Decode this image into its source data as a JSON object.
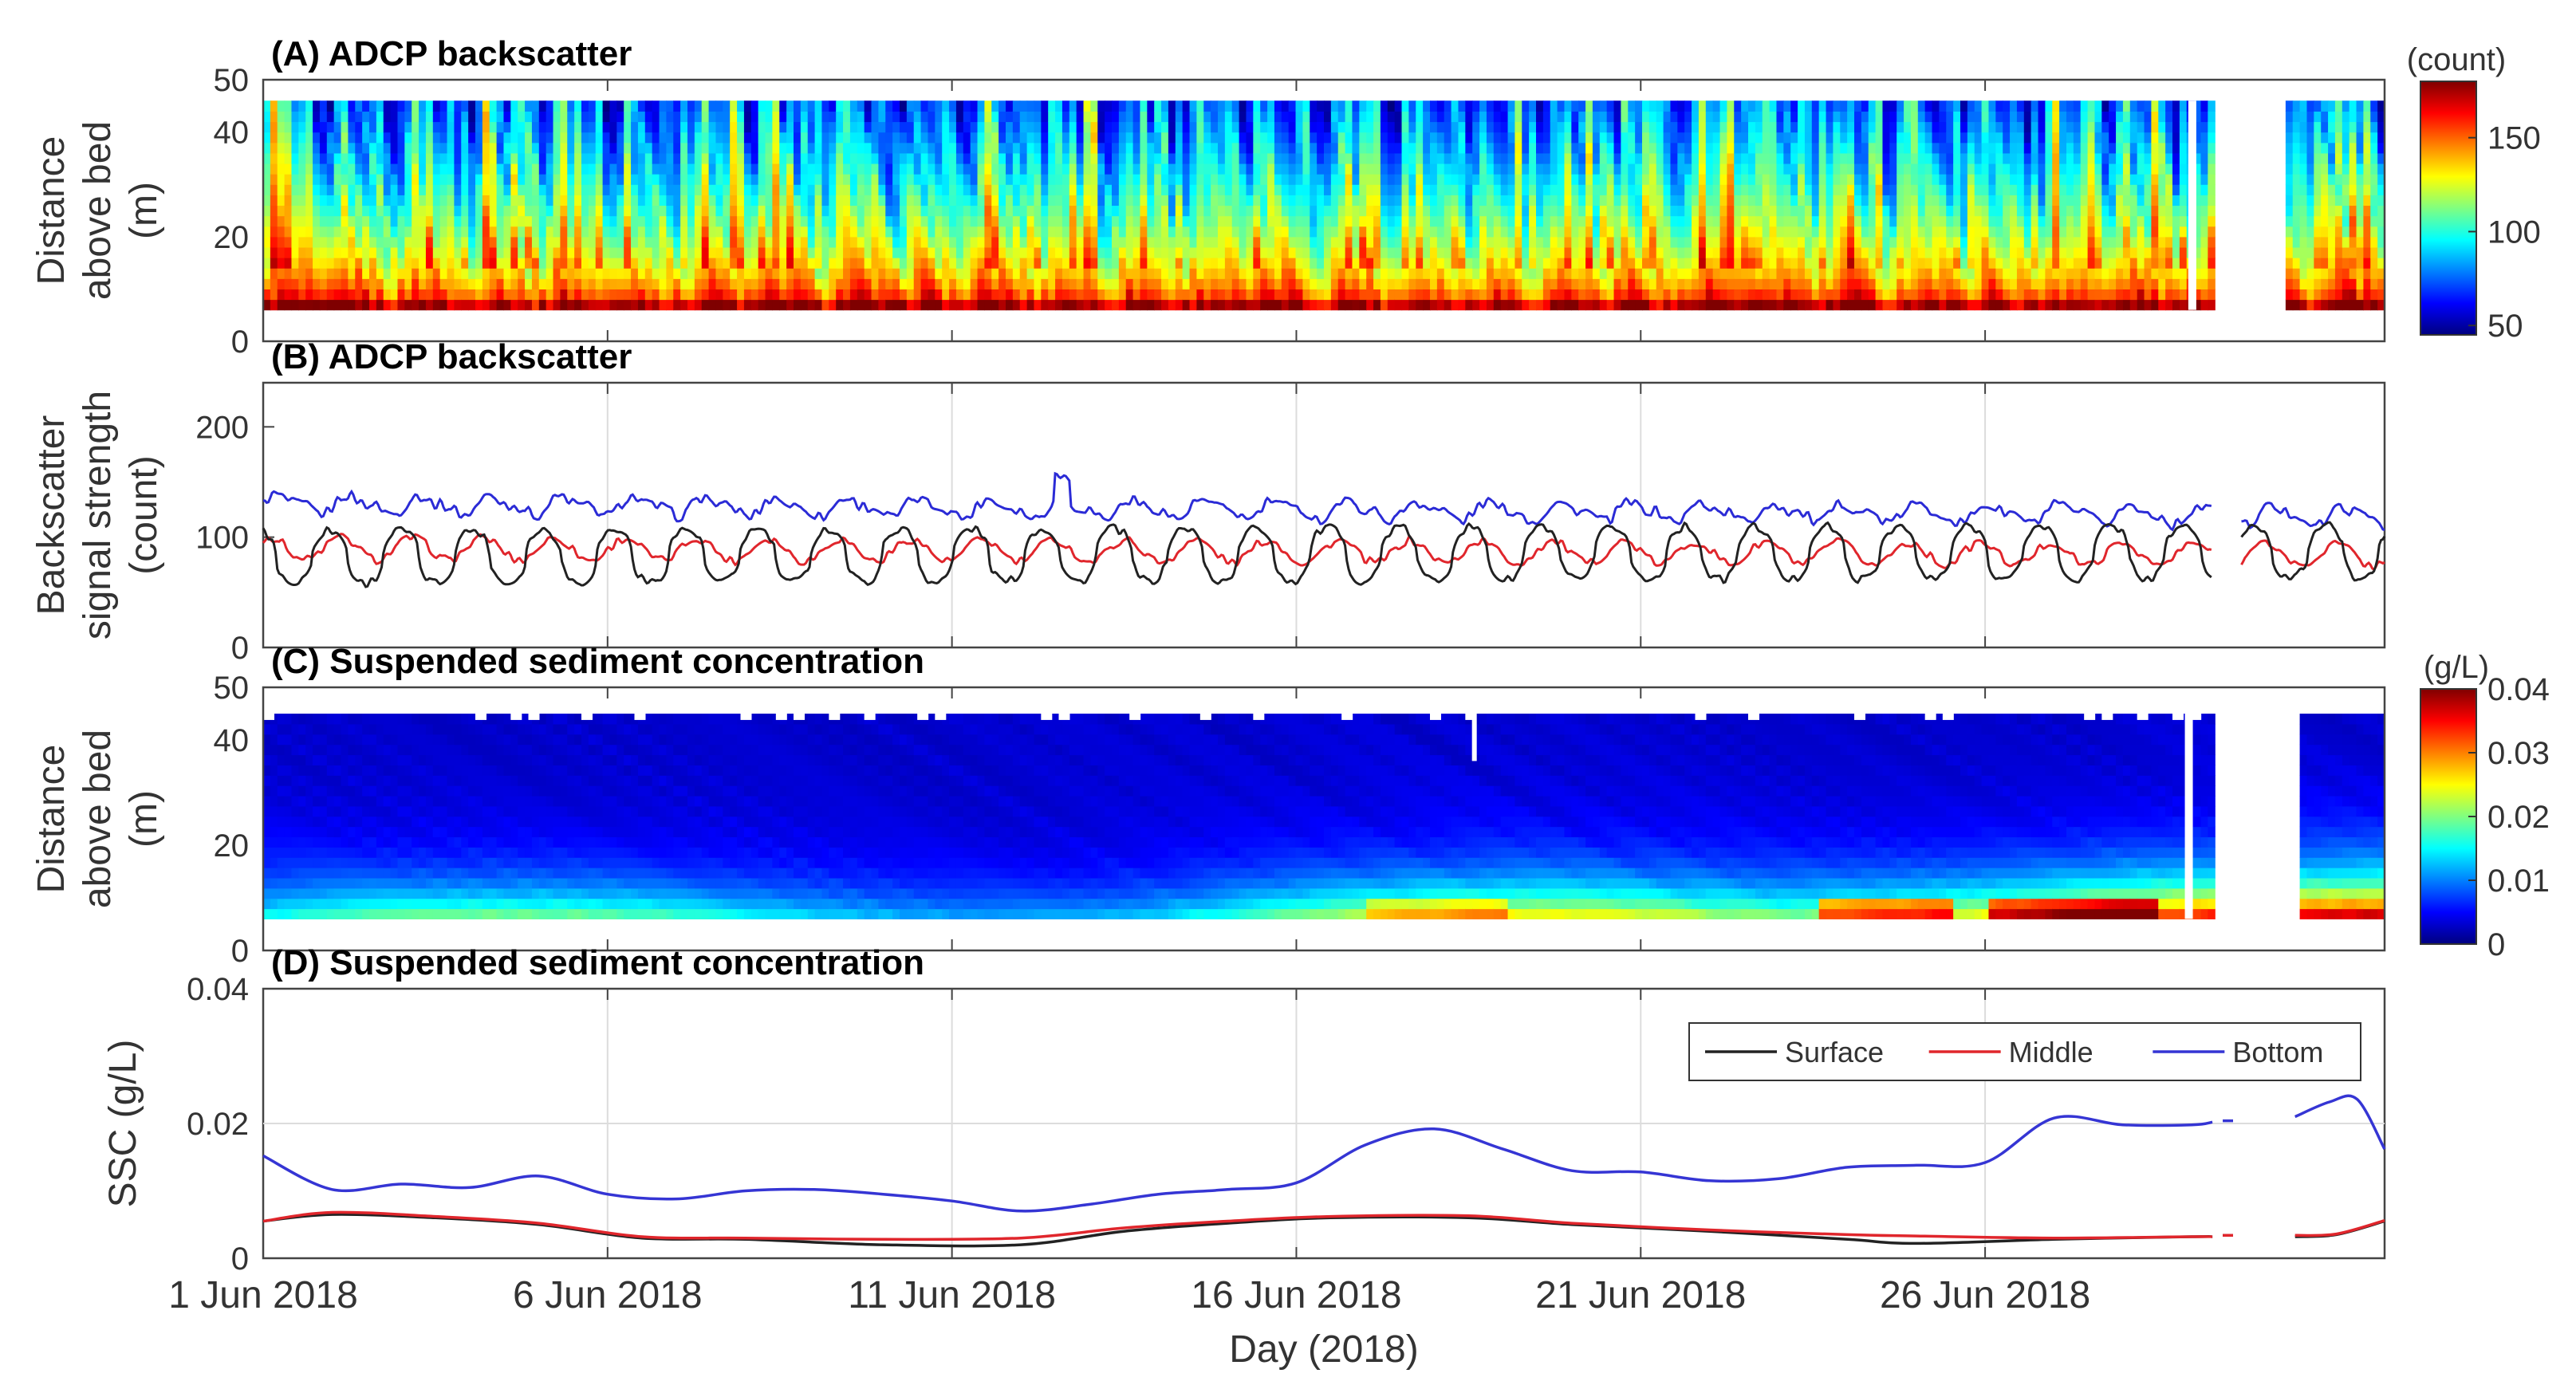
{
  "figure": {
    "xlabel": "Day (2018)",
    "x_range": [
      0,
      30.8
    ],
    "date_ticks": [
      {
        "day": 0,
        "label": "1 Jun 2018"
      },
      {
        "day": 5,
        "label": "6 Jun 2018"
      },
      {
        "day": 10,
        "label": "11 Jun 2018"
      },
      {
        "day": 15,
        "label": "16 Jun 2018"
      },
      {
        "day": 20,
        "label": "21 Jun 2018"
      },
      {
        "day": 25,
        "label": "26 Jun 2018"
      }
    ],
    "data_gap_days": [
      28.3,
      28.7,
      29.5
    ],
    "colormap": [
      "#00007f",
      "#0000ff",
      "#0080ff",
      "#00ffff",
      "#80ff80",
      "#ffff00",
      "#ff8000",
      "#ff0000",
      "#7f0000"
    ]
  },
  "chart_data": [
    {
      "id": "A",
      "type": "heatmap",
      "title": "(A) ADCP backscatter",
      "ylabel": [
        "Distance",
        "above bed",
        "(m)"
      ],
      "ylim": [
        0,
        50
      ],
      "yticks": [
        "0",
        "20",
        "40",
        "50"
      ],
      "ytick_values": [
        0,
        20,
        40,
        50
      ],
      "data_extent_m": [
        6,
        46
      ],
      "colorbar": {
        "label": "(count)",
        "range": [
          45,
          180
        ],
        "ticks": [
          "50",
          "100",
          "150"
        ],
        "tick_values": [
          50,
          100,
          150
        ]
      },
      "pattern": "tidal columns: high backscatter (150-180) near bed, low (50-80) aloft, with periodic high vertical plumes"
    },
    {
      "id": "B",
      "type": "line",
      "title": "(B) ADCP backscatter",
      "ylabel": [
        "Backscatter",
        "signal strength",
        "(count)"
      ],
      "ylim": [
        0,
        240
      ],
      "yticks": [
        "0",
        "100",
        "200"
      ],
      "ytick_values": [
        0,
        100,
        200
      ],
      "series": [
        {
          "name": "Bottom",
          "color": "#2b2bd6",
          "mean": 130,
          "tidal_amplitude": 7,
          "noise": 5,
          "trend_per_day": -0.35
        },
        {
          "name": "Middle",
          "color": "#e0262c",
          "mean": 90,
          "tidal_amplitude": 10,
          "noise": 4,
          "trend_per_day": -0.2
        },
        {
          "name": "Surface",
          "color": "#222222",
          "mean": 82,
          "tidal_amplitude": 24,
          "noise": 4,
          "trend_per_day": 0.15
        }
      ]
    },
    {
      "id": "C",
      "type": "heatmap",
      "title": "(C) Suspended sediment concentration",
      "ylabel": [
        "Distance",
        "above bed",
        "(m)"
      ],
      "ylim": [
        0,
        50
      ],
      "yticks": [
        "0",
        "20",
        "40",
        "50"
      ],
      "ytick_values": [
        0,
        20,
        40,
        50
      ],
      "data_extent_m": [
        6,
        45
      ],
      "colorbar": {
        "label": "(g/L)",
        "range": [
          0,
          0.04
        ],
        "ticks": [
          "0",
          "0.01",
          "0.02",
          "0.03",
          "0.04"
        ],
        "tick_values": [
          0,
          0.01,
          0.02,
          0.03,
          0.04
        ]
      },
      "pattern": "near-uniform low SSC (0.002-0.005) aloft; bed layer 0.01-0.02 rising to ~0.03 near days 23-27"
    },
    {
      "id": "D",
      "type": "line",
      "title": "(D) Suspended sediment concentration",
      "ylabel": [
        "SSC (g/L)"
      ],
      "ylim": [
        0,
        0.04
      ],
      "yticks": [
        "0",
        "0.02",
        "0.04"
      ],
      "ytick_values": [
        0,
        0.02,
        0.04
      ],
      "legend": {
        "position": "top-right",
        "entries": [
          "Surface",
          "Middle",
          "Bottom"
        ]
      },
      "series": [
        {
          "name": "Surface",
          "color": "#222222",
          "points": [
            [
              0,
              0.0055
            ],
            [
              1,
              0.0065
            ],
            [
              2.5,
              0.006
            ],
            [
              4,
              0.005
            ],
            [
              5.5,
              0.003
            ],
            [
              7,
              0.0028
            ],
            [
              9,
              0.002
            ],
            [
              11,
              0.002
            ],
            [
              12.5,
              0.004
            ],
            [
              14,
              0.0052
            ],
            [
              15.5,
              0.006
            ],
            [
              17.5,
              0.006
            ],
            [
              19,
              0.005
            ],
            [
              21,
              0.004
            ],
            [
              23,
              0.0028
            ],
            [
              24,
              0.0022
            ],
            [
              26,
              0.0028
            ],
            [
              28,
              0.0032
            ],
            [
              28.3,
              0.0032
            ]
          ]
        },
        {
          "name": "Middle",
          "color": "#e0262c",
          "points": [
            [
              0,
              0.0055
            ],
            [
              1,
              0.0068
            ],
            [
              2.5,
              0.0062
            ],
            [
              4,
              0.0052
            ],
            [
              5.5,
              0.0032
            ],
            [
              7,
              0.003
            ],
            [
              9,
              0.0028
            ],
            [
              11,
              0.003
            ],
            [
              12.5,
              0.0045
            ],
            [
              14,
              0.0055
            ],
            [
              15.5,
              0.0062
            ],
            [
              17.5,
              0.0063
            ],
            [
              19,
              0.0052
            ],
            [
              21,
              0.0042
            ],
            [
              23,
              0.0035
            ],
            [
              24,
              0.0033
            ],
            [
              26,
              0.003
            ],
            [
              28,
              0.0032
            ],
            [
              28.3,
              0.0032
            ]
          ]
        },
        {
          "name": "Bottom",
          "color": "#3535d4",
          "points": [
            [
              0,
              0.0152
            ],
            [
              1,
              0.0102
            ],
            [
              2,
              0.011
            ],
            [
              3,
              0.0105
            ],
            [
              4,
              0.0122
            ],
            [
              5,
              0.0095
            ],
            [
              6,
              0.0088
            ],
            [
              7,
              0.01
            ],
            [
              8,
              0.0102
            ],
            [
              9,
              0.0095
            ],
            [
              10,
              0.0085
            ],
            [
              11,
              0.007
            ],
            [
              12,
              0.008
            ],
            [
              13,
              0.0095
            ],
            [
              14,
              0.0102
            ],
            [
              15,
              0.0112
            ],
            [
              16,
              0.0168
            ],
            [
              17,
              0.0192
            ],
            [
              18,
              0.0162
            ],
            [
              19,
              0.013
            ],
            [
              20,
              0.0128
            ],
            [
              21,
              0.0115
            ],
            [
              22,
              0.0118
            ],
            [
              23,
              0.0135
            ],
            [
              24,
              0.0138
            ],
            [
              25,
              0.0142
            ],
            [
              26,
              0.0208
            ],
            [
              27,
              0.0198
            ],
            [
              28,
              0.0198
            ],
            [
              28.3,
              0.0202
            ]
          ]
        }
      ]
    }
  ]
}
